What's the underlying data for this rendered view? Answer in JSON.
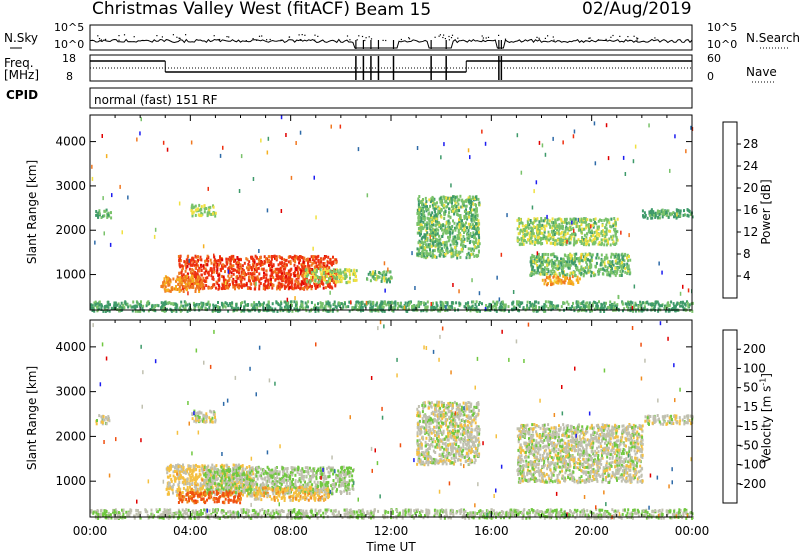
{
  "header": {
    "title": "Christmas Valley West (fitACF)",
    "beam": "Beam 15",
    "date": "02/Aug/2019"
  },
  "strip_labels": {
    "nsky": "N.Sky",
    "nsky_tick_top": "10^5",
    "nsky_tick_bottom": "10^0",
    "nsearch": "N.Search",
    "nsearch_tick_top": "10^5",
    "nsearch_tick_bottom": "10^0",
    "freq_top": "Freq.",
    "freq_unit": "[MHz]",
    "freq_tick_top": "18",
    "freq_tick_bottom": "8",
    "nave": "Nave",
    "nave_tick_top": "60",
    "nave_tick_bottom": "0",
    "cpid": "CPID",
    "cpid_value": "normal (fast) 151 RF"
  },
  "colors": {
    "power": [
      "#1c1cf0",
      "#2d6aa8",
      "#3e9a6a",
      "#79c26a",
      "#f0e040",
      "#f5b020",
      "#f07820",
      "#ee3010",
      "#e00000"
    ],
    "velocity": [
      "#e00000",
      "#f05010",
      "#f08c20",
      "#f5c040",
      "#c0c0b0",
      "#70c840",
      "#3e9a6a",
      "#2d6aa8",
      "#1c1cf0"
    ]
  },
  "chart_data": [
    {
      "type": "heatmap",
      "name": "power",
      "xlabel": "",
      "ylabel": "Slant Range [km]",
      "x_ticks": [
        "00:00",
        "04:00",
        "08:00",
        "12:00",
        "16:00",
        "20:00",
        "00:00"
      ],
      "y_ticks": [
        1000,
        2000,
        3000,
        4000
      ],
      "ylim": [
        200,
        4600
      ],
      "colorbar": {
        "label": "Power [dB]",
        "ticks": [
          4,
          8,
          12,
          16,
          20,
          24,
          28
        ],
        "range": [
          0,
          32
        ]
      },
      "regions": [
        {
          "t": [
            3.5,
            9.8
          ],
          "r": [
            700,
            1450
          ],
          "value": 26
        },
        {
          "t": [
            2.8,
            4.5
          ],
          "r": [
            650,
            1000
          ],
          "value": 22
        },
        {
          "t": [
            8.5,
            10.6
          ],
          "r": [
            850,
            1150
          ],
          "value": 14
        },
        {
          "t": [
            11.0,
            12.0
          ],
          "r": [
            850,
            1100
          ],
          "value": 12
        },
        {
          "t": [
            0.2,
            0.8
          ],
          "r": [
            2300,
            2500
          ],
          "value": 10
        },
        {
          "t": [
            4.0,
            5.0
          ],
          "r": [
            2350,
            2600
          ],
          "value": 14
        },
        {
          "t": [
            13.0,
            15.5
          ],
          "r": [
            1400,
            2800
          ],
          "value": 12
        },
        {
          "t": [
            17.0,
            21.0
          ],
          "r": [
            1700,
            2300
          ],
          "value": 13
        },
        {
          "t": [
            17.5,
            21.5
          ],
          "r": [
            1000,
            1500
          ],
          "value": 12
        },
        {
          "t": [
            18.0,
            19.5
          ],
          "r": [
            800,
            1000
          ],
          "value": 20
        },
        {
          "t": [
            22.0,
            24.0
          ],
          "r": [
            2300,
            2500
          ],
          "value": 10
        },
        {
          "t": [
            0.0,
            24.0
          ],
          "r": [
            200,
            420
          ],
          "value": 10
        }
      ]
    },
    {
      "type": "heatmap",
      "name": "velocity",
      "xlabel": "Time UT",
      "ylabel": "Slant Range [km]",
      "x_ticks": [
        "00:00",
        "04:00",
        "08:00",
        "12:00",
        "16:00",
        "20:00",
        "00:00"
      ],
      "y_ticks": [
        1000,
        2000,
        3000,
        4000
      ],
      "ylim": [
        200,
        4600
      ],
      "colorbar": {
        "label": "Velocity [m s^-1]",
        "ticks": [
          -200,
          -100,
          -50,
          -15,
          15,
          50,
          100,
          200
        ],
        "range": [
          -250,
          250
        ]
      },
      "regions": [
        {
          "t": [
            3.0,
            6.5
          ],
          "r": [
            700,
            1400
          ],
          "value": -40
        },
        {
          "t": [
            4.5,
            10.5
          ],
          "r": [
            750,
            1350
          ],
          "value": 30
        },
        {
          "t": [
            6.5,
            9.5
          ],
          "r": [
            600,
            900
          ],
          "value": -60
        },
        {
          "t": [
            3.5,
            6.0
          ],
          "r": [
            550,
            800
          ],
          "value": -150
        },
        {
          "t": [
            0.2,
            0.8
          ],
          "r": [
            2300,
            2500
          ],
          "value": 0
        },
        {
          "t": [
            4.0,
            5.0
          ],
          "r": [
            2350,
            2600
          ],
          "value": 0
        },
        {
          "t": [
            13.0,
            15.5
          ],
          "r": [
            1400,
            2800
          ],
          "value": 0
        },
        {
          "t": [
            17.0,
            22.0
          ],
          "r": [
            1000,
            2300
          ],
          "value": 0
        },
        {
          "t": [
            22.0,
            24.0
          ],
          "r": [
            2300,
            2500
          ],
          "value": 0
        },
        {
          "t": [
            0.0,
            24.0
          ],
          "r": [
            200,
            400
          ],
          "value": 20
        }
      ]
    }
  ]
}
